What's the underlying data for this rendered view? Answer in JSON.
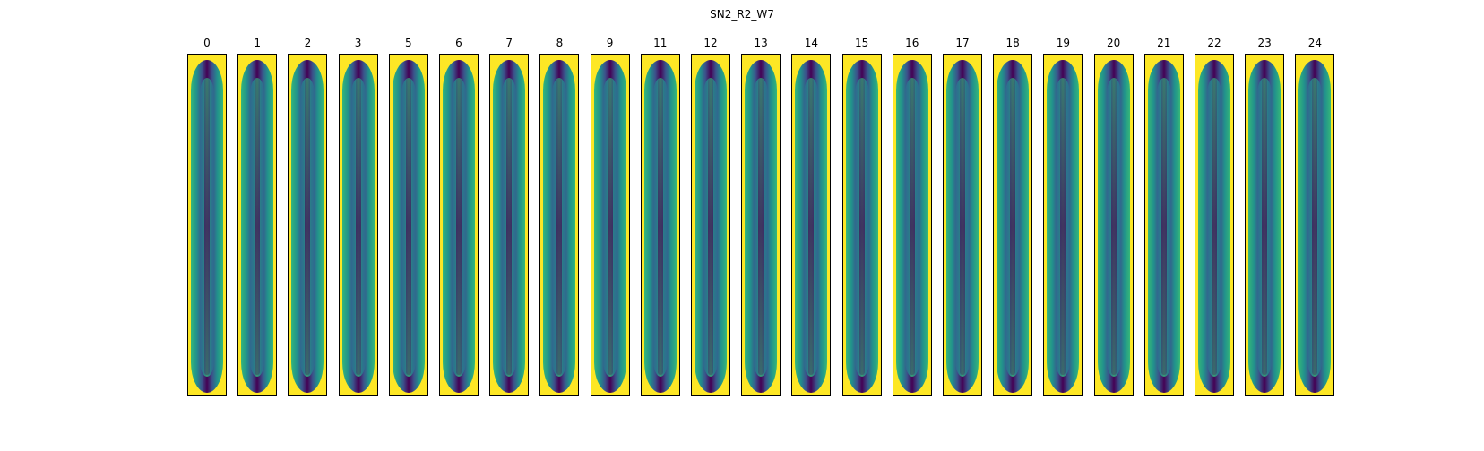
{
  "figure": {
    "title": "SN2_R2_W7",
    "panels": [
      {
        "label": "0"
      },
      {
        "label": "1"
      },
      {
        "label": "2"
      },
      {
        "label": "3"
      },
      {
        "label": "5"
      },
      {
        "label": "6"
      },
      {
        "label": "7"
      },
      {
        "label": "8"
      },
      {
        "label": "9"
      },
      {
        "label": "11"
      },
      {
        "label": "12"
      },
      {
        "label": "13"
      },
      {
        "label": "14"
      },
      {
        "label": "15"
      },
      {
        "label": "16"
      },
      {
        "label": "17"
      },
      {
        "label": "18"
      },
      {
        "label": "19"
      },
      {
        "label": "20"
      },
      {
        "label": "21"
      },
      {
        "label": "22"
      },
      {
        "label": "23"
      },
      {
        "label": "24"
      }
    ],
    "colormap": {
      "low": "#440154",
      "mid_low": "#3b528b",
      "mid": "#21918c",
      "mid_high": "#5ec962",
      "high": "#fde725"
    }
  }
}
